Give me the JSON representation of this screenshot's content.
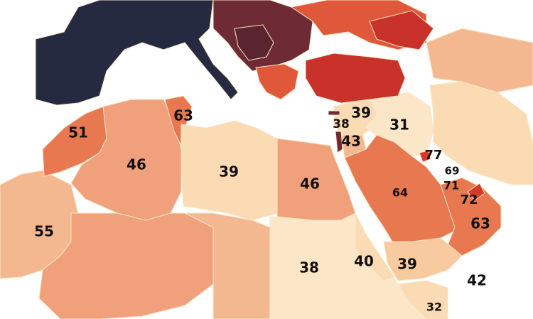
{
  "colors": {
    "water": "#ffffff",
    "dark_navy": "#252a40",
    "dark_maroon": "#5a2530",
    "maroon": "#6e2b35",
    "red": "#c8322a",
    "bright_red": "#d43a28",
    "orange_red": "#e0583a",
    "orange": "#e87850",
    "salmon": "#f0a07a",
    "light_salmon": "#f4b890",
    "peach": "#f7caa0",
    "pale_peach": "#fadbb4",
    "pale": "#fce6c8",
    "border_highlight": "#e8b030"
  },
  "regions": [
    {
      "name": "europe-west",
      "color_key": "dark_navy"
    },
    {
      "name": "balkans",
      "color_key": "maroon"
    },
    {
      "name": "eastern-europe",
      "color_key": "orange_red"
    },
    {
      "name": "turkey",
      "color_key": "red"
    },
    {
      "name": "caucasus",
      "color_key": "orange"
    },
    {
      "name": "morocco",
      "color_key": "orange"
    },
    {
      "name": "algeria",
      "color_key": "salmon"
    },
    {
      "name": "tunisia",
      "color_key": "orange"
    },
    {
      "name": "libya",
      "color_key": "pale_peach"
    },
    {
      "name": "egypt",
      "color_key": "salmon"
    },
    {
      "name": "mauritania",
      "color_key": "light_salmon"
    },
    {
      "name": "mali",
      "color_key": "salmon"
    },
    {
      "name": "sudan",
      "color_key": "pale"
    },
    {
      "name": "levant",
      "color_key": "pale_peach"
    },
    {
      "name": "iraq",
      "color_key": "pale"
    },
    {
      "name": "saudi-arabia",
      "color_key": "orange"
    },
    {
      "name": "oman-uae",
      "color_key": "orange"
    },
    {
      "name": "yemen",
      "color_key": "peach"
    },
    {
      "name": "iran",
      "color_key": "pale_peach"
    }
  ],
  "labels": [
    {
      "key": "morocco",
      "text": "51"
    },
    {
      "key": "tunisia",
      "text": "63"
    },
    {
      "key": "algeria",
      "text": "46"
    },
    {
      "key": "libya",
      "text": "39"
    },
    {
      "key": "egypt",
      "text": "46"
    },
    {
      "key": "mauritania",
      "text": "55"
    },
    {
      "key": "lebanon",
      "text": "39"
    },
    {
      "key": "israel",
      "text": "38"
    },
    {
      "key": "jordan",
      "text": "43"
    },
    {
      "key": "iraq",
      "text": "31"
    },
    {
      "key": "kuwait",
      "text": "77"
    },
    {
      "key": "bahrain",
      "text": "69"
    },
    {
      "key": "qatar",
      "text": "71"
    },
    {
      "key": "uae",
      "text": "72"
    },
    {
      "key": "saudi-arabia",
      "text": "64"
    },
    {
      "key": "oman",
      "text": "63"
    },
    {
      "key": "sudan",
      "text": "38"
    },
    {
      "key": "eritrea",
      "text": "40"
    },
    {
      "key": "yemen",
      "text": "39"
    },
    {
      "key": "djibouti",
      "text": "42"
    },
    {
      "key": "somalia",
      "text": "32"
    }
  ]
}
